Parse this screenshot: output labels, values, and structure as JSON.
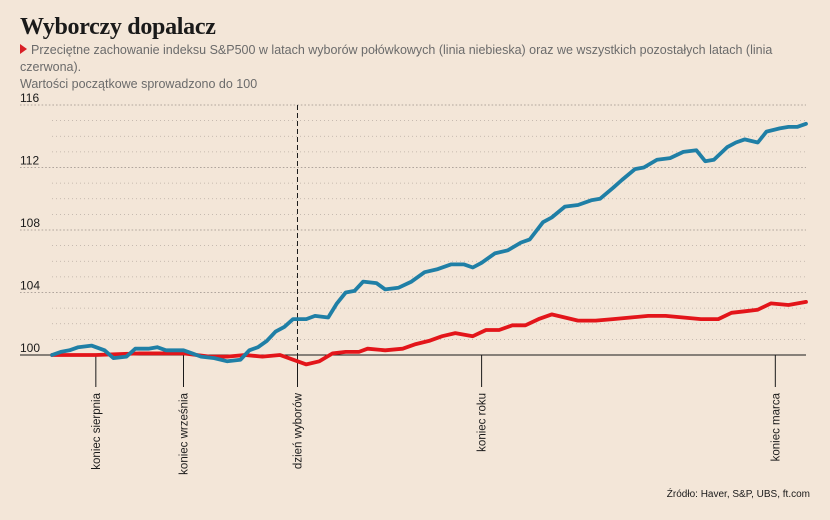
{
  "header": {
    "title": "Wyborczy dopalacz",
    "subtitle_line1": "Przeciętne zachowanie indeksu S&P500 w latach wyborów połówkowych (linia niebieska) oraz we wszystkich pozostałych latach (linia czerwona).",
    "subtitle_line2": "Wartości początkowe sprowadzono do 100"
  },
  "source": "Źródło: Haver, S&P, UBS, ft.com",
  "colors": {
    "background": "#f3e6d8",
    "blue_series": "#1f7fa6",
    "red_series": "#e3151a",
    "accent_triangle": "#d91f26"
  },
  "chart_data": {
    "type": "line",
    "ylim": [
      99,
      116.5
    ],
    "yticks": [
      100,
      104,
      108,
      112,
      116
    ],
    "grid": true,
    "legend": "none",
    "x_markers": [
      {
        "label": "koniec sierpnia",
        "x": 10
      },
      {
        "label": "koniec września",
        "x": 30
      },
      {
        "label": "dzień wyborów",
        "x": 56,
        "dashed": true
      },
      {
        "label": "koniec roku",
        "x": 98
      },
      {
        "label": "koniec marca",
        "x": 165
      }
    ],
    "series": [
      {
        "color": "#1f7fa6",
        "points": [
          [
            0,
            100.0
          ],
          [
            2,
            100.2
          ],
          [
            4,
            100.3
          ],
          [
            6,
            100.5
          ],
          [
            9,
            100.6
          ],
          [
            12,
            100.3
          ],
          [
            14,
            99.8
          ],
          [
            17,
            99.9
          ],
          [
            19,
            100.4
          ],
          [
            22,
            100.4
          ],
          [
            24,
            100.5
          ],
          [
            26,
            100.3
          ],
          [
            28,
            100.3
          ],
          [
            30,
            100.3
          ],
          [
            32,
            100.1
          ],
          [
            34,
            99.9
          ],
          [
            37,
            99.8
          ],
          [
            40,
            99.6
          ],
          [
            43,
            99.7
          ],
          [
            45,
            100.3
          ],
          [
            47,
            100.5
          ],
          [
            49,
            100.9
          ],
          [
            51,
            101.5
          ],
          [
            53,
            101.8
          ],
          [
            55,
            102.3
          ],
          [
            58,
            102.3
          ],
          [
            60,
            102.5
          ],
          [
            63,
            102.4
          ],
          [
            65,
            103.3
          ],
          [
            67,
            104.0
          ],
          [
            69,
            104.1
          ],
          [
            71,
            104.7
          ],
          [
            74,
            104.6
          ],
          [
            76,
            104.2
          ],
          [
            79,
            104.3
          ],
          [
            82,
            104.7
          ],
          [
            85,
            105.3
          ],
          [
            88,
            105.5
          ],
          [
            91,
            105.8
          ],
          [
            94,
            105.8
          ],
          [
            96,
            105.6
          ],
          [
            98,
            105.9
          ],
          [
            101,
            106.5
          ],
          [
            104,
            106.7
          ],
          [
            107,
            107.2
          ],
          [
            109,
            107.4
          ],
          [
            112,
            108.5
          ],
          [
            114,
            108.8
          ],
          [
            117,
            109.5
          ],
          [
            120,
            109.6
          ],
          [
            123,
            109.9
          ],
          [
            125,
            110.0
          ],
          [
            128,
            110.7
          ],
          [
            130,
            111.2
          ],
          [
            133,
            111.9
          ],
          [
            135,
            112.0
          ],
          [
            138,
            112.5
          ],
          [
            141,
            112.6
          ],
          [
            144,
            113.0
          ],
          [
            147,
            113.1
          ],
          [
            149,
            112.4
          ],
          [
            151,
            112.5
          ],
          [
            154,
            113.3
          ],
          [
            156,
            113.6
          ],
          [
            158,
            113.8
          ],
          [
            161,
            113.6
          ],
          [
            163,
            114.3
          ],
          [
            166,
            114.5
          ],
          [
            168,
            114.6
          ],
          [
            170,
            114.6
          ],
          [
            172,
            114.8
          ]
        ]
      },
      {
        "color": "#e3151a",
        "points": [
          [
            0,
            100.0
          ],
          [
            10,
            100.0
          ],
          [
            20,
            100.1
          ],
          [
            30,
            100.1
          ],
          [
            36,
            99.9
          ],
          [
            40,
            99.9
          ],
          [
            44,
            100.0
          ],
          [
            48,
            99.9
          ],
          [
            52,
            100.0
          ],
          [
            55,
            99.7
          ],
          [
            58,
            99.4
          ],
          [
            61,
            99.6
          ],
          [
            64,
            100.1
          ],
          [
            67,
            100.2
          ],
          [
            70,
            100.2
          ],
          [
            72,
            100.4
          ],
          [
            76,
            100.3
          ],
          [
            80,
            100.4
          ],
          [
            83,
            100.7
          ],
          [
            86,
            100.9
          ],
          [
            89,
            101.2
          ],
          [
            92,
            101.4
          ],
          [
            96,
            101.2
          ],
          [
            99,
            101.6
          ],
          [
            102,
            101.6
          ],
          [
            105,
            101.9
          ],
          [
            108,
            101.9
          ],
          [
            111,
            102.3
          ],
          [
            114,
            102.6
          ],
          [
            117,
            102.4
          ],
          [
            120,
            102.2
          ],
          [
            124,
            102.2
          ],
          [
            128,
            102.3
          ],
          [
            132,
            102.4
          ],
          [
            136,
            102.5
          ],
          [
            140,
            102.5
          ],
          [
            144,
            102.4
          ],
          [
            148,
            102.3
          ],
          [
            152,
            102.3
          ],
          [
            155,
            102.7
          ],
          [
            158,
            102.8
          ],
          [
            161,
            102.9
          ],
          [
            164,
            103.3
          ],
          [
            168,
            103.2
          ],
          [
            172,
            103.4
          ]
        ]
      }
    ]
  }
}
